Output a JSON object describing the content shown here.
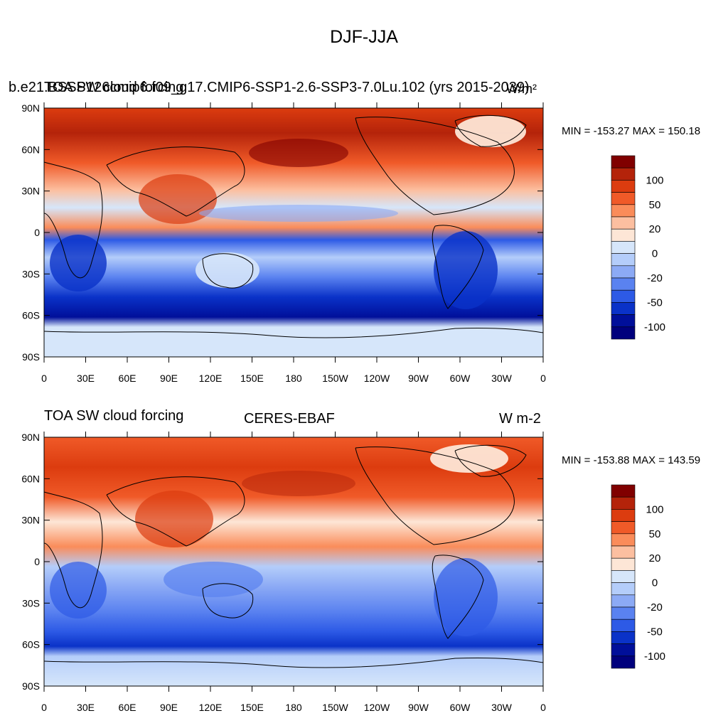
{
  "main_title": "DJF-JJA",
  "colorbar": {
    "labels": [
      "100",
      "50",
      "20",
      "0",
      "-20",
      "-50",
      "-100"
    ],
    "colors": [
      "#800000",
      "#b4230a",
      "#dc3c0f",
      "#f05a28",
      "#fa8c5a",
      "#fcbfa0",
      "#fde6d6",
      "#d6e6fa",
      "#b4cdfa",
      "#8caaf5",
      "#5a82f0",
      "#2d5ae6",
      "#0a32c8",
      "#000f9a",
      "#00007d"
    ]
  },
  "panels": [
    {
      "left_title": "TOA SW cloud forcing",
      "case_title": "b.e21.BSSP126cmip6.f09_g17.CMIP6-SSP1-2.6-SSP3-7.0Lu.102 (yrs 2015-2039)",
      "units": "W/m²",
      "minmax": "MIN = -153.27 MAX = 150.18"
    },
    {
      "left_title": "TOA SW cloud forcing",
      "center_title": "CERES-EBAF",
      "units": "W m-2",
      "minmax": "MIN = -153.88 MAX = 143.59"
    }
  ],
  "axes": {
    "lat_labels": [
      "90N",
      "60N",
      "30N",
      "0",
      "30S",
      "60S",
      "90S"
    ],
    "lon_labels": [
      "0",
      "30E",
      "60E",
      "90E",
      "120E",
      "150E",
      "180",
      "150W",
      "120W",
      "90W",
      "60W",
      "30W",
      "0"
    ]
  },
  "chart_data": [
    {
      "type": "heatmap",
      "title": "DJF-JJA",
      "subtitle": "TOA SW cloud forcing — b.e21.BSSP126cmip6.f09_g17.CMIP6-SSP1-2.6-SSP3-7.0Lu.102 (yrs 2015-2039)",
      "units": "W/m²",
      "min": -153.27,
      "max": 150.18,
      "xlabels": [
        "0",
        "30E",
        "60E",
        "90E",
        "120E",
        "150E",
        "180",
        "150W",
        "120W",
        "90W",
        "60W",
        "30W",
        "0"
      ],
      "ylabels": [
        "90N",
        "60N",
        "30N",
        "0",
        "30S",
        "60S",
        "90S"
      ],
      "xlim": [
        0,
        360
      ],
      "ylim": [
        -90,
        90
      ],
      "colorbar_levels": [
        -100,
        -50,
        -20,
        0,
        20,
        50,
        100
      ]
    },
    {
      "type": "heatmap",
      "title": "DJF-JJA",
      "subtitle": "TOA SW cloud forcing — CERES-EBAF",
      "units": "W m-2",
      "min": -153.88,
      "max": 143.59,
      "xlabels": [
        "0",
        "30E",
        "60E",
        "90E",
        "120E",
        "150E",
        "180",
        "150W",
        "120W",
        "90W",
        "60W",
        "30W",
        "0"
      ],
      "ylabels": [
        "90N",
        "60N",
        "30N",
        "0",
        "30S",
        "60S",
        "90S"
      ],
      "xlim": [
        0,
        360
      ],
      "ylim": [
        -90,
        90
      ],
      "colorbar_levels": [
        -100,
        -50,
        -20,
        0,
        20,
        50,
        100
      ]
    }
  ]
}
